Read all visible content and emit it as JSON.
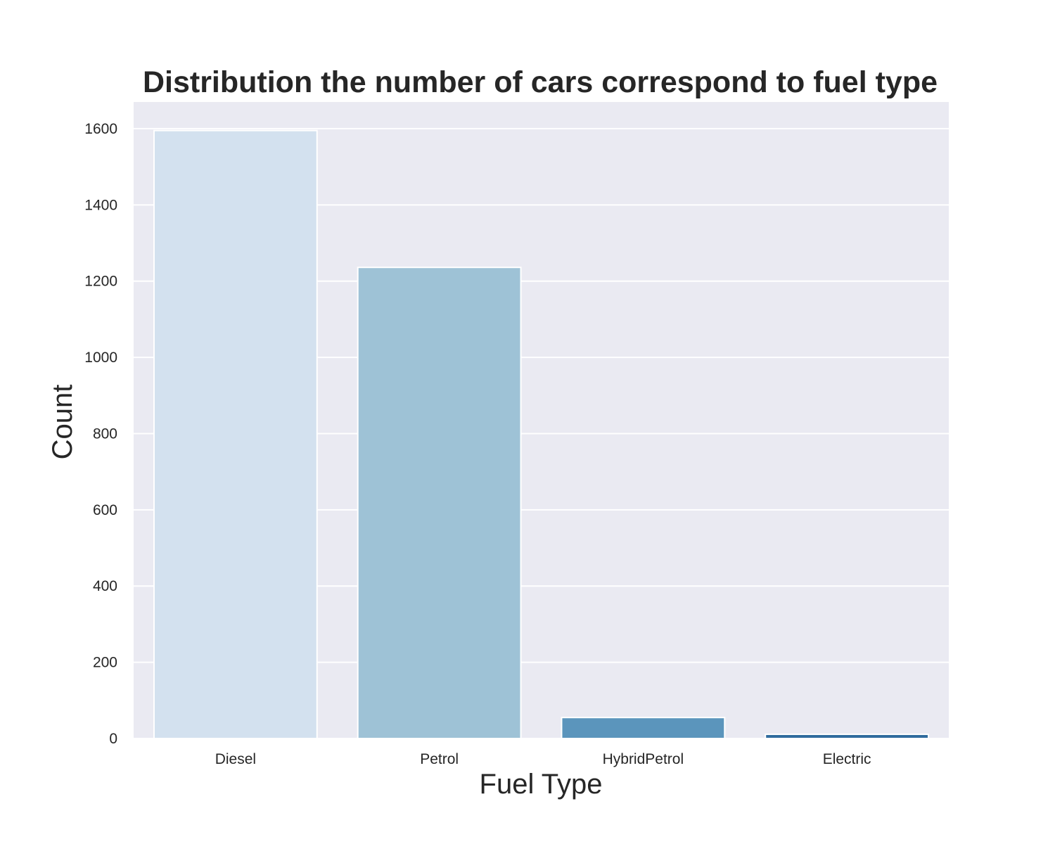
{
  "chart_data": {
    "type": "bar",
    "title": "Distribution the number of cars correspond to fuel type",
    "xlabel": "Fuel Type",
    "ylabel": "Count",
    "categories": [
      "Diesel",
      "Petrol",
      "HybridPetrol",
      "Electric"
    ],
    "values": [
      1595,
      1236,
      55,
      11
    ],
    "ylim": [
      0,
      1670
    ],
    "yticks": [
      0,
      200,
      400,
      600,
      800,
      1000,
      1200,
      1400,
      1600
    ],
    "grid": true,
    "legend": "none",
    "colors": {
      "background": "#eaeaf2",
      "grid": "#ffffff",
      "bars": [
        "#d3e1ef",
        "#9ec2d6",
        "#5b95bc",
        "#2f6b9d"
      ]
    }
  }
}
